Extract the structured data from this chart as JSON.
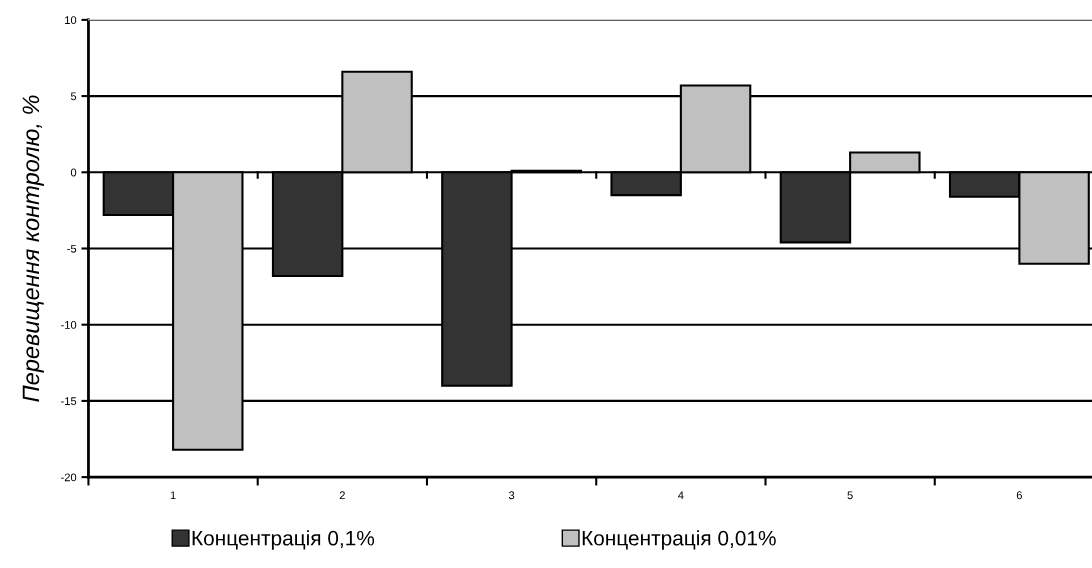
{
  "chart_data": {
    "type": "bar",
    "ylabel": "Перевищення контролю, %",
    "categories": [
      "1",
      "2",
      "3",
      "4",
      "5",
      "6"
    ],
    "series": [
      {
        "name": "Концентрація 0,1%",
        "color": "#333333",
        "values": [
          -2.8,
          -6.8,
          -14.0,
          -1.5,
          -4.6,
          -1.6
        ]
      },
      {
        "name": "Концентрація 0,01%",
        "color": "#c0c0c0",
        "values": [
          -18.2,
          6.6,
          0.1,
          5.7,
          1.3,
          -6.0
        ]
      }
    ],
    "ylim": [
      -20,
      10
    ],
    "yticks": [
      -20,
      -15,
      -10,
      -5,
      0,
      5,
      10
    ],
    "grid": "y",
    "legend": "bottom"
  }
}
